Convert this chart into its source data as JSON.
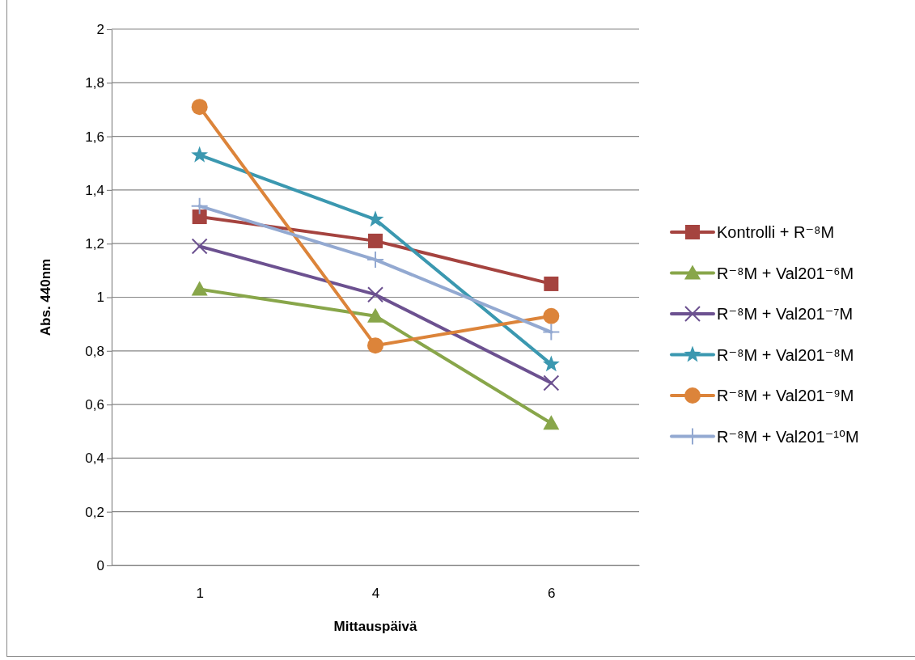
{
  "chart_data": {
    "type": "line",
    "xlabel": "Mittauspäivä",
    "ylabel": "Abs. 440nm",
    "categories": [
      "1",
      "4",
      "6"
    ],
    "series": [
      {
        "name": "Kontrolli + R⁻⁸M",
        "color": "#a5433f",
        "marker": "square",
        "values": [
          1.3,
          1.21,
          1.05
        ]
      },
      {
        "name": "R⁻⁸M + Val201⁻⁶M",
        "color": "#88a64a",
        "marker": "triangle",
        "values": [
          1.03,
          0.93,
          0.53
        ]
      },
      {
        "name": "R⁻⁸M + Val201⁻⁷M",
        "color": "#6c5190",
        "marker": "cross",
        "values": [
          1.19,
          1.01,
          0.68
        ]
      },
      {
        "name": "R⁻⁸M + Val201⁻⁸M",
        "color": "#3b98b0",
        "marker": "star",
        "values": [
          1.53,
          1.29,
          0.75
        ]
      },
      {
        "name": "R⁻⁸M + Val201⁻⁹M",
        "color": "#dc843a",
        "marker": "circle",
        "values": [
          1.71,
          0.82,
          0.93
        ]
      },
      {
        "name": "R⁻⁸M + Val201⁻¹⁰M",
        "color": "#93a9d1",
        "marker": "plus",
        "values": [
          1.34,
          1.14,
          0.87
        ]
      }
    ],
    "ylim": [
      0,
      2
    ],
    "yticks": [
      0,
      {
        "value": 0.2,
        "label": "0,2"
      },
      {
        "value": 0.4,
        "label": "0,4"
      },
      {
        "value": 0.6,
        "label": "0,6"
      },
      {
        "value": 0.8,
        "label": "0,8"
      },
      1,
      {
        "value": 1.2,
        "label": "1,2"
      },
      {
        "value": 1.4,
        "label": "1,4"
      },
      {
        "value": 1.6,
        "label": "1,6"
      },
      {
        "value": 1.8,
        "label": "1,8"
      },
      2
    ],
    "grid": "y",
    "legend": "right",
    "line_style": "solid"
  }
}
